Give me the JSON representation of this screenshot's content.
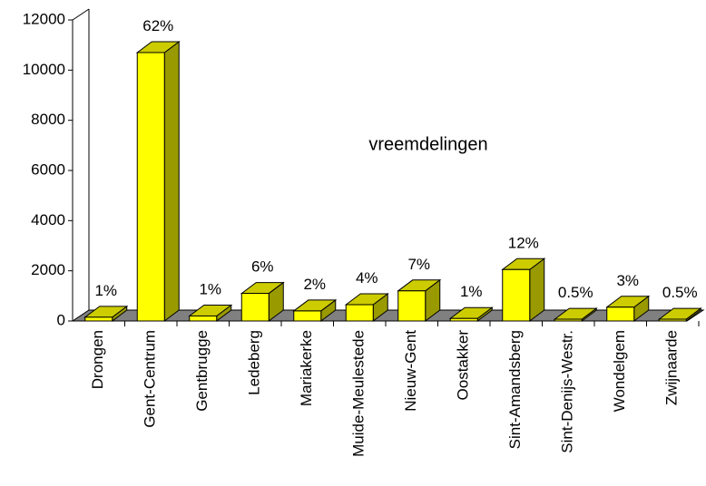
{
  "chart_data": {
    "type": "bar3d",
    "title": "vreemdelingen",
    "categories": [
      "Drongen",
      "Gent-Centrum",
      "Gentbrugge",
      "Ledeberg",
      "Mariakerke",
      "Muide-Meulestede",
      "Nieuw-Gent",
      "Oostakker",
      "Sint-Amandsberg",
      "Sint-Denijs-Westr.",
      "Wondelgem",
      "Zwijnaarde"
    ],
    "values": [
      150,
      10700,
      200,
      1100,
      400,
      650,
      1200,
      100,
      2050,
      70,
      550,
      70
    ],
    "percent_labels": [
      "1%",
      "62%",
      "1%",
      "6%",
      "2%",
      "4%",
      "7%",
      "1%",
      "12%",
      "0.5%",
      "3%",
      "0.5%"
    ],
    "color": "#ffff00",
    "ylim": [
      0,
      12000
    ],
    "yticks": [
      0,
      2000,
      4000,
      6000,
      8000,
      10000,
      12000
    ]
  }
}
